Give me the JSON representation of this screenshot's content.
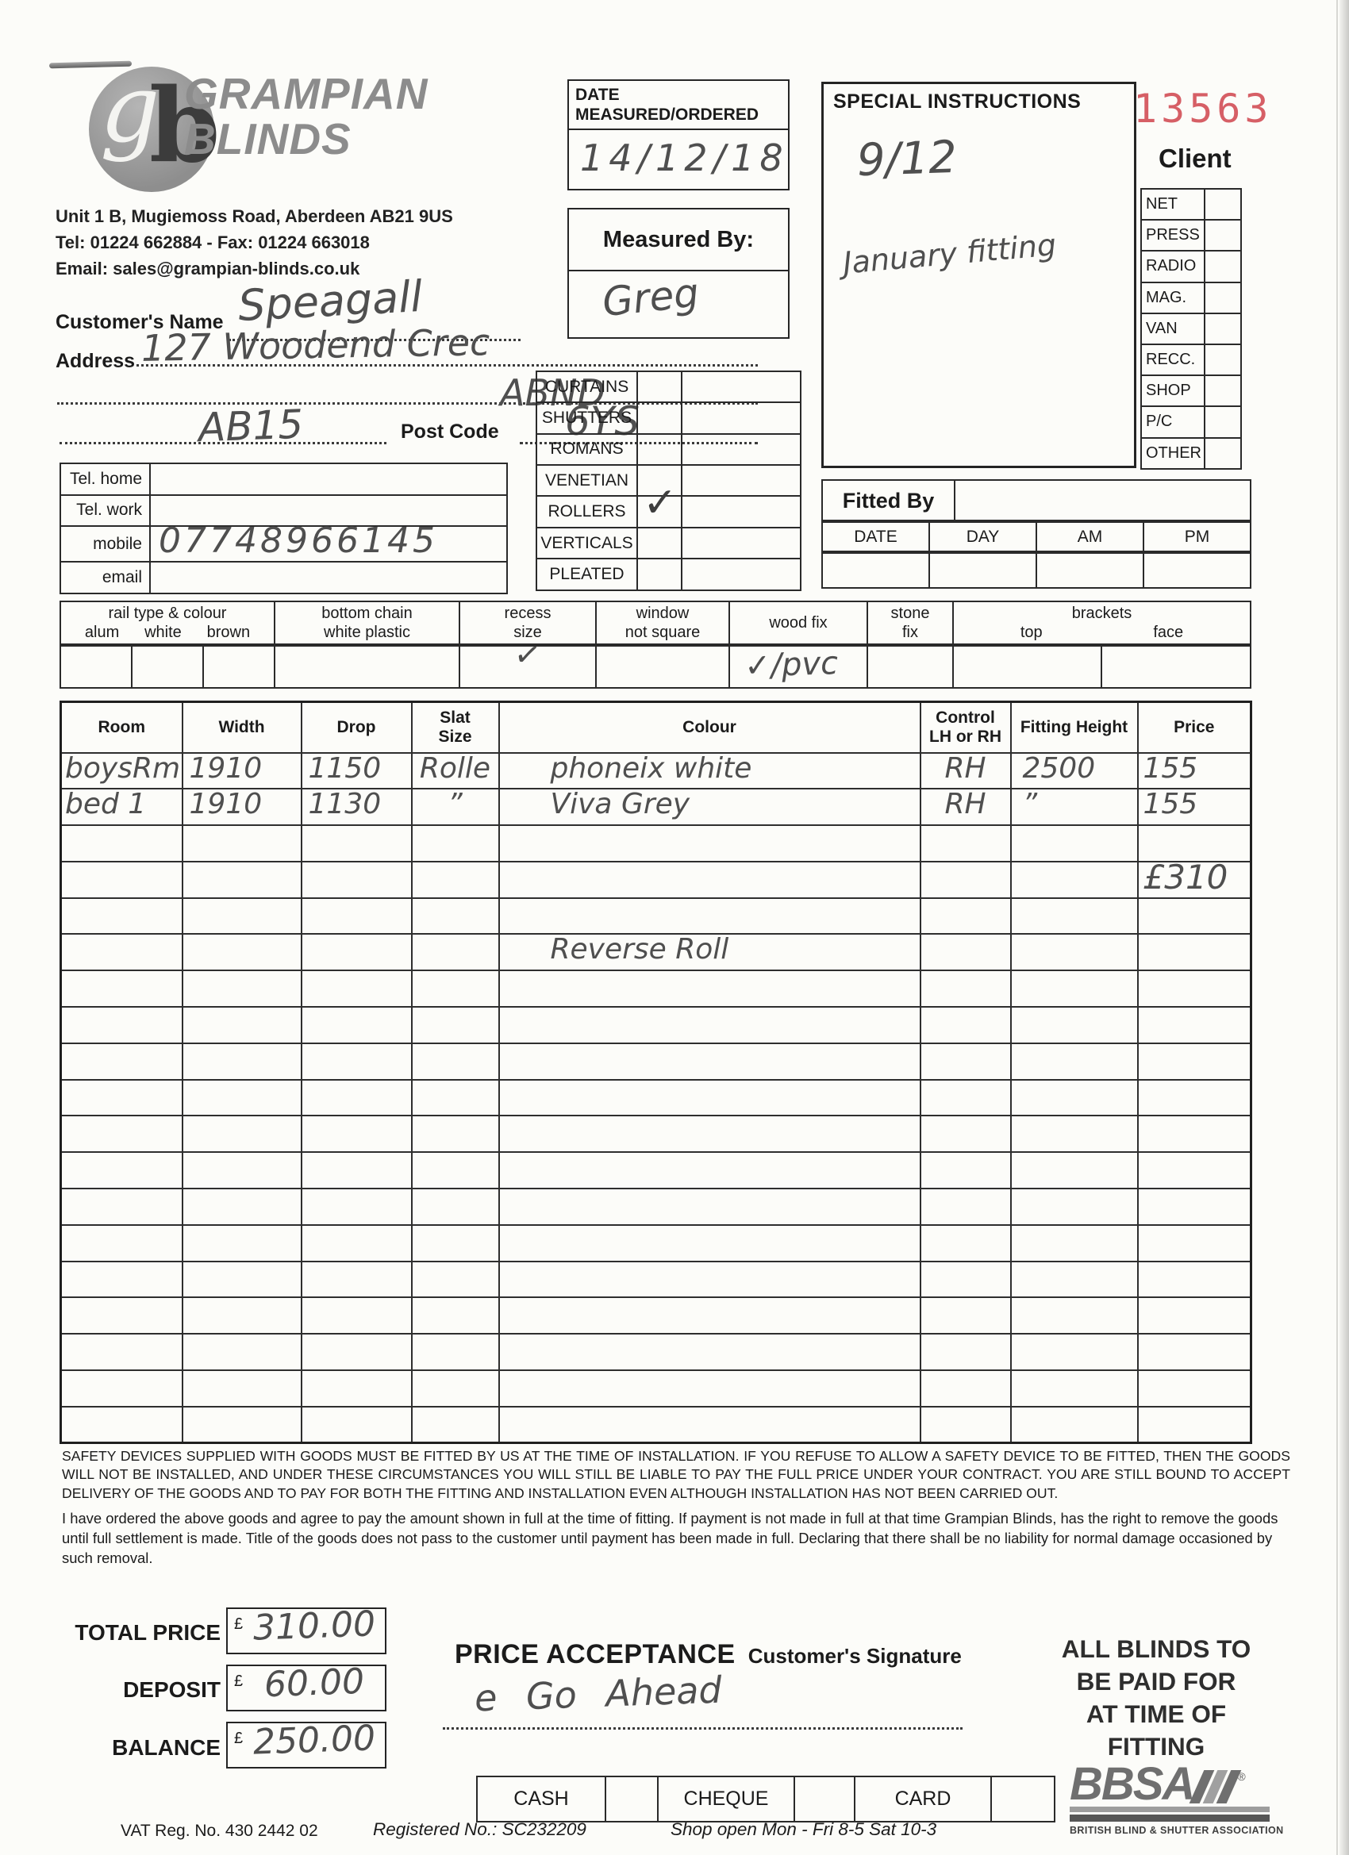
{
  "company": {
    "name_line1": "GRAMPIAN",
    "name_line2": "BLINDS",
    "logo_g": "g",
    "logo_b": "b",
    "address": "Unit 1 B, Mugiemoss Road, Aberdeen AB21 9US",
    "phone_fax": "Tel: 01224 662884   -   Fax: 01224 663018",
    "email": "Email: sales@grampian-blinds.co.uk"
  },
  "order_number": "13563",
  "accent_red": "#d65f66",
  "date_box": {
    "label_line1": "DATE",
    "label_line2": "MEASURED/ORDERED",
    "value": "14/12/18"
  },
  "measured_by": {
    "label": "Measured By:",
    "value": "Greg"
  },
  "special_instructions": {
    "title": "SPECIAL INSTRUCTIONS",
    "note1": "9/12",
    "note2": "January fitting"
  },
  "client_panel": {
    "title": "Client",
    "categories": [
      "NET",
      "PRESS",
      "RADIO",
      "MAG.",
      "VAN",
      "RECC.",
      "SHOP",
      "P/C",
      "OTHER"
    ]
  },
  "customer": {
    "name_label": "Customer's Name",
    "name": "Speagall",
    "address_label": "Address",
    "address_line1": "127 Woodend Crec",
    "address_line2": "ABND",
    "address_line3": "AB15",
    "postcode_label": "Post Code",
    "postcode": "6YS"
  },
  "contact": {
    "rows": [
      {
        "label": "Tel. home",
        "value": ""
      },
      {
        "label": "Tel. work",
        "value": ""
      },
      {
        "label": "mobile",
        "value": "07748966145"
      },
      {
        "label": "email",
        "value": ""
      }
    ]
  },
  "product_types": [
    {
      "label": "CURTAINS",
      "checked": false
    },
    {
      "label": "SHUTTERS",
      "checked": false
    },
    {
      "label": "ROMANS",
      "checked": false
    },
    {
      "label": "VENETIAN",
      "checked": false
    },
    {
      "label": "ROLLERS",
      "checked": true
    },
    {
      "label": "VERTICALS",
      "checked": false
    },
    {
      "label": "PLEATED",
      "checked": false
    }
  ],
  "check_mark": "✓",
  "fitted_by": {
    "label": "Fitted By",
    "columns": [
      "DATE",
      "DAY",
      "AM",
      "PM"
    ]
  },
  "options": {
    "rail": {
      "title": "rail type & colour",
      "subs": [
        "alum",
        "white",
        "brown"
      ]
    },
    "chain": {
      "title": "bottom chain",
      "subtitle": "white plastic"
    },
    "recess": {
      "title": "recess",
      "subtitle": "size",
      "value": "✓"
    },
    "window": {
      "title": "window",
      "subtitle": "not square"
    },
    "wood": {
      "title": "wood fix",
      "value": "✓/pvc"
    },
    "stone": {
      "title": "stone",
      "subtitle": "fix"
    },
    "brackets": {
      "title": "brackets",
      "subs": [
        "top",
        "face"
      ]
    }
  },
  "order_table": {
    "headers": [
      "Room",
      "Width",
      "Drop",
      "Slat\nSize",
      "Colour",
      "Control\nLH or RH",
      "Fitting Height",
      "Price"
    ],
    "rows": [
      {
        "room": "boysRm",
        "width": "1910",
        "drop": "1150",
        "slat": "Rolle",
        "colour": "phoneix white",
        "control": "RH",
        "fitting": "2500",
        "price": "155"
      },
      {
        "room": "bed 1",
        "width": "1910",
        "drop": "1130",
        "slat": "”",
        "colour": "Viva Grey",
        "control": "RH",
        "fitting": "”",
        "price": "155"
      },
      {},
      {
        "price": "£310"
      },
      {},
      {
        "colour": "Reverse Roll"
      },
      {},
      {},
      {},
      {},
      {},
      {},
      {},
      {},
      {},
      {},
      {},
      {},
      {}
    ]
  },
  "terms": {
    "para1": "SAFETY DEVICES SUPPLIED WITH GOODS MUST BE FITTED BY US AT THE TIME OF INSTALLATION. IF YOU REFUSE TO ALLOW A SAFETY DEVICE TO BE FITTED, THEN THE GOODS WILL NOT BE INSTALLED, AND UNDER THESE CIRCUMSTANCES YOU WILL STILL BE LIABLE TO PAY THE FULL PRICE UNDER YOUR CONTRACT. YOU ARE STILL BOUND TO ACCEPT DELIVERY OF THE GOODS AND TO PAY FOR BOTH THE FITTING AND INSTALLATION EVEN ALTHOUGH INSTALLATION HAS NOT BEEN CARRIED OUT.",
    "para2": "I have ordered the above goods and agree to pay the amount shown in full at the time of fitting. If payment is not made in full at that time Grampian Blinds, has the right to remove the goods until full settlement is made. Title of the goods does not pass to the customer until payment has been made in full. Declaring that there shall be no liability for normal damage occasioned by such removal."
  },
  "totals": {
    "rows": [
      {
        "label": "TOTAL PRICE",
        "currency": "£",
        "value": "310.00"
      },
      {
        "label": "DEPOSIT",
        "currency": "£",
        "value": "60.00"
      },
      {
        "label": "BALANCE",
        "currency": "£",
        "value": "250.00"
      }
    ]
  },
  "acceptance": {
    "title": "PRICE ACCEPTANCE",
    "subtitle": "Customer's Signature",
    "signature": "e Go Ahead"
  },
  "payment_methods": [
    "CASH",
    "CHEQUE",
    "CARD"
  ],
  "paid_notice": [
    "ALL BLINDS TO",
    "BE PAID FOR",
    "AT TIME OF",
    "FITTING"
  ],
  "bbsa": {
    "name": "BBSA",
    "reg": "®",
    "caption": "BRITISH BLIND & SHUTTER ASSOCIATION"
  },
  "footer": {
    "vat": "VAT Reg. No. 430 2442 02",
    "registered": "Registered No.: SC232209",
    "hours": "Shop open Mon - Fri 8-5  Sat 10-3"
  }
}
